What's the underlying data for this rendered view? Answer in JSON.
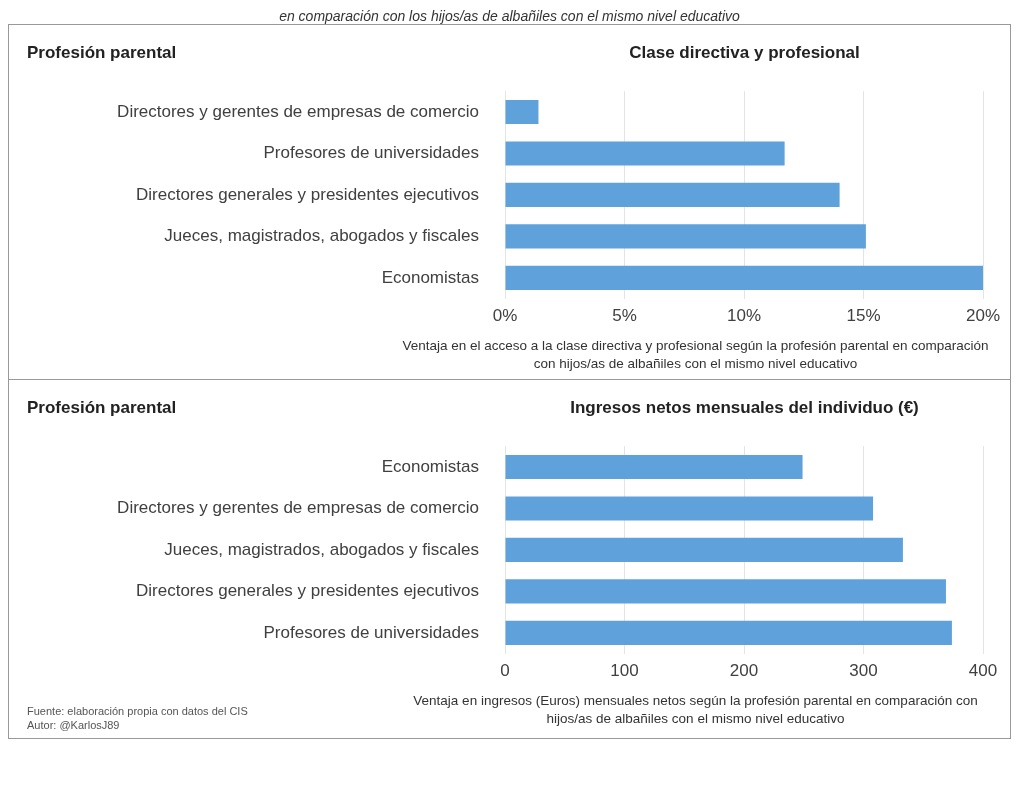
{
  "chart_data": [
    {
      "type": "bar",
      "orientation": "horizontal",
      "subtitle": "en comparación con los hijos/as de albañiles con el mismo nivel educativo",
      "title": "Clase directiva y profesional",
      "ylabel": "Profesión parental",
      "xlabel": "Ventaja en el acceso a la clase directiva y profesional según la profesión parental en comparación con hijos/as de albañiles con el mismo nivel educativo",
      "categories": [
        "Directores y gerentes de empresas de comercio",
        "Profesores de universidades",
        "Directores generales y presidentes ejecutivos",
        "Jueces, magistrados, abogados y fiscales",
        "Economistas"
      ],
      "values": [
        1.4,
        11.7,
        14.0,
        15.1,
        20.0
      ],
      "color": "#5fa2db",
      "xlim": [
        0,
        20
      ],
      "xticks": [
        {
          "value": 0,
          "label": "0%"
        },
        {
          "value": 5,
          "label": "5%"
        },
        {
          "value": 10,
          "label": "10%"
        },
        {
          "value": 15,
          "label": "15%"
        },
        {
          "value": 20,
          "label": "20%"
        }
      ],
      "grid": "x"
    },
    {
      "type": "bar",
      "orientation": "horizontal",
      "title": "Ingresos netos mensuales del individuo (€)",
      "ylabel": "Profesión parental",
      "xlabel": "Ventaja en ingresos (Euros) mensuales netos según la profesión parental en comparación con hijos/as de albañiles con el mismo nivel educativo",
      "categories": [
        "Economistas",
        "Directores y gerentes de empresas de comercio",
        "Jueces, magistrados, abogados y fiscales",
        "Directores generales y presidentes ejecutivos",
        "Profesores de universidades"
      ],
      "values": [
        249,
        308,
        333,
        369,
        374
      ],
      "color": "#5fa2db",
      "xlim": [
        0,
        400
      ],
      "xticks": [
        0,
        100,
        200,
        300,
        400
      ],
      "grid": "x",
      "annotations": [
        "Fuente: elaboración propia con datos del CIS",
        "Autor: @KarlosJ89"
      ]
    }
  ]
}
